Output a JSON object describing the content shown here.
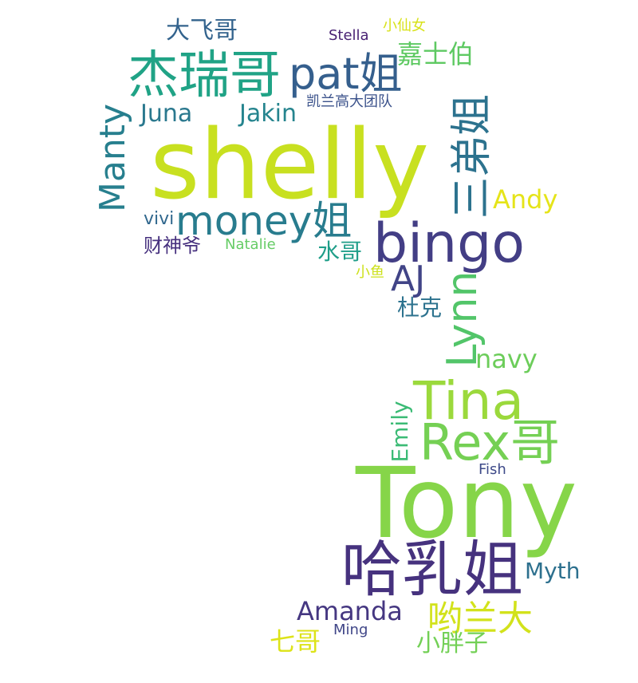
{
  "words": [
    {
      "text": "shelly",
      "color": "#c8e020"
    },
    {
      "text": "Tony",
      "color": "#86d549"
    },
    {
      "text": "杰瑞哥",
      "color": "#20a386"
    },
    {
      "text": "pat姐",
      "color": "#355f8d"
    },
    {
      "text": "bingo",
      "color": "#433e85"
    },
    {
      "text": "money姐",
      "color": "#287c8e"
    },
    {
      "text": "哈乳姐",
      "color": "#46327e"
    },
    {
      "text": "Tina",
      "color": "#9bd93c"
    },
    {
      "text": "Rex哥",
      "color": "#75d054"
    },
    {
      "text": "三弟姐",
      "color": "#2c728e"
    },
    {
      "text": "Manty",
      "color": "#277f8e"
    },
    {
      "text": "Lynn",
      "color": "#52c569"
    },
    {
      "text": "AJ",
      "color": "#414487"
    },
    {
      "text": "大飞哥",
      "color": "#33638d"
    },
    {
      "text": "嘉士伯",
      "color": "#5ec962"
    },
    {
      "text": "Juna",
      "color": "#2a788e"
    },
    {
      "text": "Jakin",
      "color": "#25848e"
    },
    {
      "text": "Stella",
      "color": "#482173"
    },
    {
      "text": "小仙女",
      "color": "#d8e219"
    },
    {
      "text": "凯兰高大团队",
      "color": "#3b528b"
    },
    {
      "text": "Andy",
      "color": "#e5e419"
    },
    {
      "text": "vivi",
      "color": "#31688e"
    },
    {
      "text": "财神爷",
      "color": "#46307e"
    },
    {
      "text": "Natalie",
      "color": "#66cc66"
    },
    {
      "text": "水哥",
      "color": "#1f9e89"
    },
    {
      "text": "小鱼",
      "color": "#cde11d"
    },
    {
      "text": "杜克",
      "color": "#2c728e"
    },
    {
      "text": "navy",
      "color": "#6ccd5a"
    },
    {
      "text": "Emily",
      "color": "#3bbb75"
    },
    {
      "text": "Fish",
      "color": "#3e4a89"
    },
    {
      "text": "Myth",
      "color": "#2d708e"
    },
    {
      "text": "Amanda",
      "color": "#453781"
    },
    {
      "text": "哟兰大",
      "color": "#d2e21b"
    },
    {
      "text": "七哥",
      "color": "#dde318"
    },
    {
      "text": "Ming",
      "color": "#404688"
    },
    {
      "text": "小胖子",
      "color": "#73d056"
    }
  ]
}
